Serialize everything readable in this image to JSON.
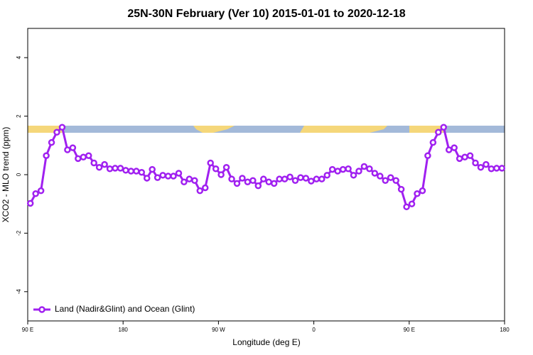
{
  "chart_data": {
    "type": "line",
    "title": "25N-30N February (Ver 10)   2015-01-01 to 2020-12-18",
    "x_label": "Longitude (deg E)",
    "y_label": "XCO2 - MLO trend (ppm)",
    "xlim": [
      90,
      540
    ],
    "ylim": [
      -5,
      5
    ],
    "xticks": [
      {
        "value": 90,
        "label": "90 E"
      },
      {
        "value": 180,
        "label": "180"
      },
      {
        "value": 270,
        "label": "90 W"
      },
      {
        "value": 360,
        "label": "0"
      },
      {
        "value": 450,
        "label": "90 E"
      },
      {
        "value": 540,
        "label": "180"
      }
    ],
    "yticks": [
      -4,
      -2,
      0,
      2,
      4
    ],
    "legend": "bottom-left",
    "x": [
      92.5,
      97.5,
      102.5,
      107.5,
      112.5,
      117.5,
      122.5,
      127.5,
      132.5,
      137.5,
      142.5,
      147.5,
      152.5,
      157.5,
      162.5,
      167.5,
      172.5,
      177.5,
      182.5,
      187.5,
      192.5,
      197.5,
      202.5,
      207.5,
      212.5,
      217.5,
      222.5,
      227.5,
      232.5,
      237.5,
      242.5,
      247.5,
      252.5,
      257.5,
      262.5,
      267.5,
      272.5,
      277.5,
      282.5,
      287.5,
      292.5,
      297.5,
      302.5,
      307.5,
      312.5,
      317.5,
      322.5,
      327.5,
      332.5,
      337.5,
      342.5,
      347.5,
      352.5,
      357.5,
      362.5,
      367.5,
      372.5,
      377.5,
      382.5,
      387.5,
      392.5,
      397.5,
      402.5,
      407.5,
      412.5,
      417.5,
      422.5,
      427.5,
      432.5,
      437.5,
      442.5,
      447.5,
      452.5,
      457.5,
      462.5,
      467.5,
      472.5,
      477.5,
      482.5,
      487.5,
      492.5,
      497.5,
      502.5,
      507.5,
      512.5,
      517.5,
      522.5,
      527.5,
      532.5,
      537.5
    ],
    "series": [
      {
        "name": "Land (Nadir&Glint) and Ocean (Glint)",
        "color": "#a020f0",
        "values": [
          -0.98,
          -0.65,
          -0.55,
          0.65,
          1.1,
          1.45,
          1.62,
          0.85,
          0.92,
          0.55,
          0.6,
          0.65,
          0.4,
          0.25,
          0.35,
          0.2,
          0.22,
          0.22,
          0.15,
          0.12,
          0.12,
          0.08,
          -0.12,
          0.18,
          -0.1,
          -0.02,
          -0.05,
          -0.05,
          0.05,
          -0.25,
          -0.15,
          -0.2,
          -0.55,
          -0.45,
          0.4,
          0.2,
          0.0,
          0.25,
          -0.15,
          -0.3,
          -0.12,
          -0.25,
          -0.2,
          -0.38,
          -0.15,
          -0.25,
          -0.3,
          -0.15,
          -0.15,
          -0.08,
          -0.2,
          -0.1,
          -0.12,
          -0.22,
          -0.15,
          -0.15,
          -0.02,
          0.18,
          0.12,
          0.18,
          0.2,
          -0.02,
          0.12,
          0.28,
          0.2,
          0.05,
          -0.05,
          -0.2,
          -0.1,
          -0.2,
          -0.5,
          -1.1,
          -1.0,
          -0.65,
          -0.55,
          0.65,
          1.1,
          1.45,
          1.62,
          0.85,
          0.92,
          0.55,
          0.6,
          0.65,
          0.4,
          0.25,
          0.35,
          0.2,
          0.22,
          0.22
        ]
      }
    ]
  }
}
